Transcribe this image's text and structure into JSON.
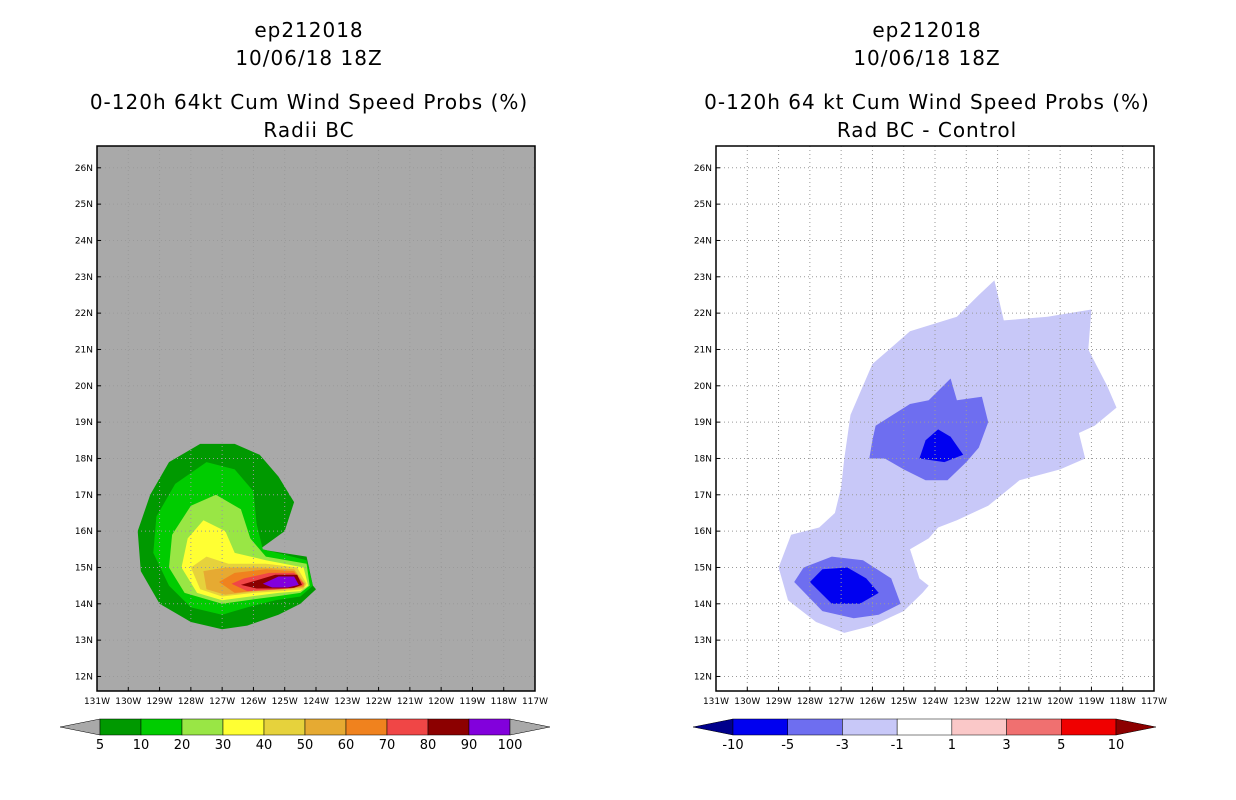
{
  "chart_data": [
    {
      "type": "filled-contour-map",
      "storm_id": "ep212018",
      "datetime": "10/06/18 18Z",
      "title": "0-120h 64kt Cum Wind Speed Probs (%)",
      "subtitle": "Radii BC",
      "xlabel": "",
      "ylabel": "",
      "x_ticks": [
        "131W",
        "130W",
        "129W",
        "128W",
        "127W",
        "126W",
        "125W",
        "124W",
        "123W",
        "122W",
        "121W",
        "120W",
        "119W",
        "118W",
        "117W"
      ],
      "y_ticks": [
        "12N",
        "13N",
        "14N",
        "15N",
        "16N",
        "17N",
        "18N",
        "19N",
        "20N",
        "21N",
        "22N",
        "23N",
        "24N",
        "25N",
        "26N"
      ],
      "xlim": [
        -131,
        -117
      ],
      "ylim": [
        11.6,
        26.6
      ],
      "background": "#a9a9a9",
      "grid": true,
      "colorbar": {
        "ticks": [
          "5",
          "10",
          "20",
          "30",
          "40",
          "50",
          "60",
          "70",
          "80",
          "90",
          "100"
        ],
        "colors": [
          "#009900",
          "#00cc00",
          "#99e645",
          "#ffff33",
          "#e6d23c",
          "#e6aa32",
          "#f0821e",
          "#f04646",
          "#8c0000",
          "#8200dc"
        ],
        "under_color": "#a9a9a9",
        "over_color": "#a9a9a9"
      },
      "contours": [
        {
          "level": 5,
          "color": "#009900",
          "lonlat": [
            [
              -127.0,
              13.3
            ],
            [
              -126.2,
              13.4
            ],
            [
              -125.2,
              13.7
            ],
            [
              -124.5,
              14.0
            ],
            [
              -124.0,
              14.4
            ],
            [
              -124.1,
              14.5
            ],
            [
              -124.3,
              15.3
            ],
            [
              -125.8,
              15.5
            ],
            [
              -125.0,
              16.0
            ],
            [
              -124.7,
              16.8
            ],
            [
              -125.2,
              17.5
            ],
            [
              -125.8,
              18.1
            ],
            [
              -126.6,
              18.4
            ],
            [
              -127.7,
              18.4
            ],
            [
              -128.7,
              17.9
            ],
            [
              -129.3,
              17.0
            ],
            [
              -129.7,
              16.0
            ],
            [
              -129.6,
              14.9
            ],
            [
              -129.0,
              14.0
            ],
            [
              -128.0,
              13.5
            ]
          ]
        },
        {
          "level": 10,
          "color": "#00cc00",
          "lonlat": [
            [
              -127.0,
              13.7
            ],
            [
              -126.2,
              13.9
            ],
            [
              -125.3,
              14.1
            ],
            [
              -124.5,
              14.2
            ],
            [
              -124.1,
              14.5
            ],
            [
              -124.3,
              15.2
            ],
            [
              -125.7,
              15.5
            ],
            [
              -125.9,
              16.2
            ],
            [
              -126.0,
              17.1
            ],
            [
              -126.6,
              17.7
            ],
            [
              -127.5,
              17.9
            ],
            [
              -128.5,
              17.3
            ],
            [
              -129.1,
              16.4
            ],
            [
              -129.2,
              15.4
            ],
            [
              -128.7,
              14.5
            ],
            [
              -128.0,
              13.9
            ]
          ]
        },
        {
          "level": 20,
          "color": "#99e645",
          "lonlat": [
            [
              -127.0,
              14.0
            ],
            [
              -126.2,
              14.1
            ],
            [
              -125.3,
              14.2
            ],
            [
              -124.5,
              14.3
            ],
            [
              -124.2,
              14.5
            ],
            [
              -124.3,
              15.1
            ],
            [
              -125.6,
              15.3
            ],
            [
              -126.1,
              15.8
            ],
            [
              -126.4,
              16.6
            ],
            [
              -127.2,
              17.0
            ],
            [
              -128.0,
              16.7
            ],
            [
              -128.6,
              15.9
            ],
            [
              -128.7,
              15.0
            ],
            [
              -128.2,
              14.3
            ]
          ]
        },
        {
          "level": 30,
          "color": "#ffff33",
          "lonlat": [
            [
              -127.0,
              14.1
            ],
            [
              -126.1,
              14.2
            ],
            [
              -125.2,
              14.3
            ],
            [
              -124.5,
              14.35
            ],
            [
              -124.25,
              14.5
            ],
            [
              -124.4,
              15.0
            ],
            [
              -125.6,
              15.2
            ],
            [
              -126.6,
              15.4
            ],
            [
              -126.9,
              16.0
            ],
            [
              -127.6,
              16.3
            ],
            [
              -128.1,
              15.8
            ],
            [
              -128.3,
              15.0
            ],
            [
              -127.8,
              14.3
            ]
          ]
        },
        {
          "level": 40,
          "color": "#e6d23c",
          "lonlat": [
            [
              -127.0,
              14.2
            ],
            [
              -126.0,
              14.3
            ],
            [
              -125.1,
              14.35
            ],
            [
              -124.4,
              14.4
            ],
            [
              -124.3,
              14.55
            ],
            [
              -124.6,
              15.0
            ],
            [
              -125.6,
              15.1
            ],
            [
              -126.8,
              15.1
            ],
            [
              -127.5,
              15.3
            ],
            [
              -128.0,
              15.0
            ],
            [
              -127.7,
              14.4
            ]
          ]
        },
        {
          "level": 50,
          "color": "#e6aa32",
          "lonlat": [
            [
              -126.9,
              14.25
            ],
            [
              -125.9,
              14.35
            ],
            [
              -125.0,
              14.4
            ],
            [
              -124.4,
              14.45
            ],
            [
              -124.35,
              14.55
            ],
            [
              -124.7,
              14.95
            ],
            [
              -125.7,
              15.0
            ],
            [
              -126.9,
              15.0
            ],
            [
              -127.6,
              14.9
            ],
            [
              -127.5,
              14.4
            ]
          ]
        },
        {
          "level": 60,
          "color": "#f0821e",
          "lonlat": [
            [
              -126.6,
              14.3
            ],
            [
              -125.7,
              14.38
            ],
            [
              -124.9,
              14.42
            ],
            [
              -124.4,
              14.48
            ],
            [
              -124.38,
              14.55
            ],
            [
              -124.7,
              14.9
            ],
            [
              -125.6,
              14.95
            ],
            [
              -126.6,
              14.85
            ],
            [
              -127.1,
              14.6
            ]
          ]
        },
        {
          "level": 70,
          "color": "#f04646",
          "lonlat": [
            [
              -126.2,
              14.35
            ],
            [
              -125.5,
              14.38
            ],
            [
              -124.8,
              14.42
            ],
            [
              -124.45,
              14.5
            ],
            [
              -124.4,
              14.55
            ],
            [
              -124.7,
              14.85
            ],
            [
              -125.5,
              14.85
            ],
            [
              -126.3,
              14.7
            ],
            [
              -126.7,
              14.55
            ]
          ]
        },
        {
          "level": 80,
          "color": "#8c0000",
          "lonlat": [
            [
              -125.9,
              14.42
            ],
            [
              -125.2,
              14.42
            ],
            [
              -124.7,
              14.44
            ],
            [
              -124.45,
              14.52
            ],
            [
              -124.6,
              14.8
            ],
            [
              -125.3,
              14.8
            ],
            [
              -126.0,
              14.62
            ],
            [
              -126.4,
              14.52
            ]
          ]
        },
        {
          "level": 90,
          "color": "#8200dc",
          "lonlat": [
            [
              -125.4,
              14.45
            ],
            [
              -124.9,
              14.45
            ],
            [
              -124.55,
              14.52
            ],
            [
              -124.7,
              14.75
            ],
            [
              -125.2,
              14.75
            ],
            [
              -125.7,
              14.55
            ]
          ]
        }
      ]
    },
    {
      "type": "filled-contour-map",
      "storm_id": "ep212018",
      "datetime": "10/06/18 18Z",
      "title": "0-120h 64 kt Cum Wind Speed Probs (%)",
      "subtitle": "Rad BC - Control",
      "xlabel": "",
      "ylabel": "",
      "x_ticks": [
        "131W",
        "130W",
        "129W",
        "128W",
        "127W",
        "126W",
        "125W",
        "124W",
        "123W",
        "122W",
        "121W",
        "120W",
        "119W",
        "118W",
        "117W"
      ],
      "y_ticks": [
        "12N",
        "13N",
        "14N",
        "15N",
        "16N",
        "17N",
        "18N",
        "19N",
        "20N",
        "21N",
        "22N",
        "23N",
        "24N",
        "25N",
        "26N"
      ],
      "xlim": [
        -131,
        -117
      ],
      "ylim": [
        11.6,
        26.6
      ],
      "background": "#ffffff",
      "grid": true,
      "colorbar": {
        "ticks": [
          "-10",
          "-5",
          "-3",
          "-1",
          "1",
          "3",
          "5",
          "10"
        ],
        "colors": [
          "#0000f0",
          "#6e6ef0",
          "#c8c8f8",
          "#ffffff",
          "#fac8c8",
          "#f07070",
          "#f00000"
        ],
        "under_color": "#00008c",
        "over_color": "#8c0000"
      },
      "contours": [
        {
          "level": -1,
          "color": "#c8c8f8",
          "lonlat": [
            [
              -126.7,
              19.2
            ],
            [
              -126.0,
              20.6
            ],
            [
              -124.8,
              21.5
            ],
            [
              -123.3,
              21.9
            ],
            [
              -122.6,
              22.5
            ],
            [
              -122.1,
              22.9
            ],
            [
              -121.8,
              21.8
            ],
            [
              -120.4,
              21.9
            ],
            [
              -119.0,
              22.1
            ],
            [
              -119.1,
              21.0
            ],
            [
              -118.5,
              20.0
            ],
            [
              -118.2,
              19.4
            ],
            [
              -118.9,
              18.9
            ],
            [
              -119.4,
              18.7
            ],
            [
              -119.2,
              18.0
            ],
            [
              -120.0,
              17.7
            ],
            [
              -121.3,
              17.4
            ],
            [
              -122.3,
              16.7
            ],
            [
              -123.3,
              16.3
            ],
            [
              -123.9,
              16.1
            ],
            [
              -124.2,
              15.8
            ],
            [
              -124.8,
              15.5
            ],
            [
              -124.5,
              14.7
            ],
            [
              -124.2,
              14.5
            ],
            [
              -124.4,
              14.3
            ],
            [
              -125.0,
              13.8
            ],
            [
              -126.0,
              13.4
            ],
            [
              -126.9,
              13.2
            ],
            [
              -127.8,
              13.5
            ],
            [
              -128.7,
              14.1
            ],
            [
              -129.0,
              15.0
            ],
            [
              -128.6,
              15.9
            ],
            [
              -127.7,
              16.1
            ],
            [
              -127.2,
              16.5
            ],
            [
              -127.0,
              17.2
            ],
            [
              -126.9,
              18.0
            ],
            [
              -126.8,
              18.6
            ]
          ]
        },
        {
          "level": -3,
          "color": "#6e6ef0",
          "lonlat": [
            [
              -125.9,
              18.9
            ],
            [
              -124.8,
              19.5
            ],
            [
              -124.2,
              19.6
            ],
            [
              -123.5,
              20.2
            ],
            [
              -123.3,
              19.6
            ],
            [
              -122.5,
              19.7
            ],
            [
              -122.3,
              19.0
            ],
            [
              -122.6,
              18.3
            ],
            [
              -123.0,
              17.9
            ],
            [
              -123.6,
              17.4
            ],
            [
              -124.3,
              17.4
            ],
            [
              -125.0,
              17.7
            ],
            [
              -125.6,
              18.0
            ],
            [
              -126.1,
              18.0
            ],
            [
              -126.0,
              18.5
            ]
          ]
        },
        {
          "level": -3,
          "color": "#6e6ef0",
          "lonlat": [
            [
              -128.5,
              14.6
            ],
            [
              -128.2,
              15.0
            ],
            [
              -127.3,
              15.3
            ],
            [
              -126.3,
              15.2
            ],
            [
              -125.4,
              14.7
            ],
            [
              -125.1,
              14.0
            ],
            [
              -125.8,
              13.7
            ],
            [
              -126.6,
              13.6
            ],
            [
              -127.6,
              13.8
            ]
          ]
        },
        {
          "level": -5,
          "color": "#0000f0",
          "lonlat": [
            [
              -124.5,
              18.0
            ],
            [
              -124.3,
              18.5
            ],
            [
              -123.9,
              18.8
            ],
            [
              -123.5,
              18.6
            ],
            [
              -123.1,
              18.1
            ],
            [
              -123.7,
              17.9
            ]
          ]
        },
        {
          "level": -5,
          "color": "#0000f0",
          "lonlat": [
            [
              -128.0,
              14.6
            ],
            [
              -127.6,
              14.95
            ],
            [
              -126.8,
              15.0
            ],
            [
              -126.2,
              14.7
            ],
            [
              -125.8,
              14.3
            ],
            [
              -126.4,
              14.0
            ],
            [
              -127.3,
              14.0
            ]
          ]
        }
      ]
    }
  ]
}
